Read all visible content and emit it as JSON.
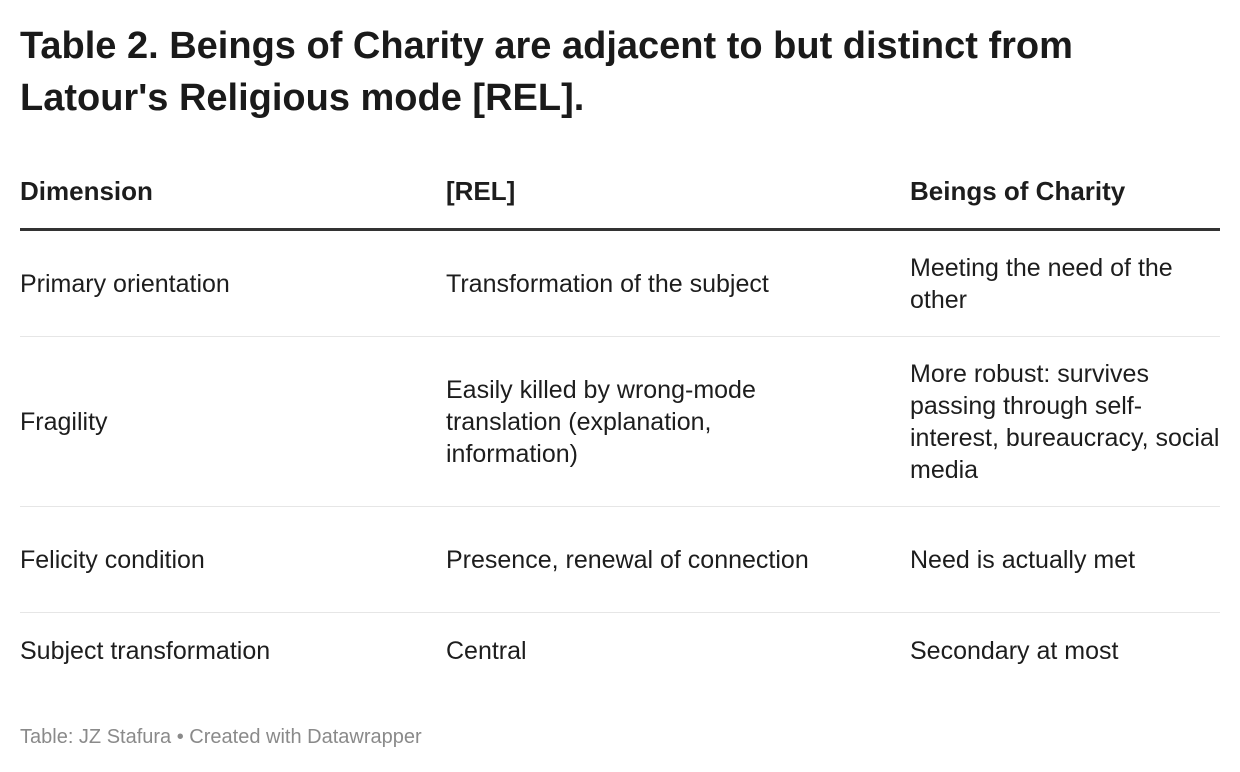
{
  "title": "Table 2. Beings of Charity are adjacent to but distinct from Latour's Religious mode [REL].",
  "chart_data": {
    "type": "table",
    "columns": [
      "Dimension",
      "[REL]",
      "Beings of Charity"
    ],
    "rows": [
      [
        "Primary orientation",
        "Transformation of the subject",
        "Meeting the need of the other"
      ],
      [
        "Fragility",
        "Easily killed by wrong-mode translation (explanation, information)",
        "More robust: survives passing through self-interest, bureaucracy, social media"
      ],
      [
        "Felicity condition",
        "Presence, renewal of connection",
        "Need is actually met"
      ],
      [
        "Subject transformation",
        "Central",
        "Secondary at most"
      ]
    ]
  },
  "footer": "Table: JZ Stafura • Created with Datawrapper"
}
